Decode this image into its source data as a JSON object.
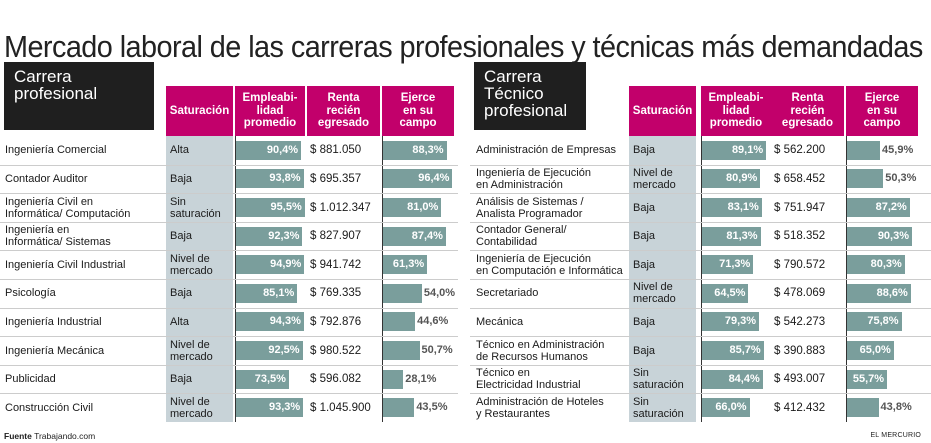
{
  "title": "Mercado laboral de las carreras profesionales y técnicas más demandadas",
  "source_label": "Fuente",
  "source_text": "Trabajando.com",
  "brand": "EL MERCURIO",
  "colors": {
    "header": "#c2006b",
    "bar": "#7a9e9c",
    "saturation_bg": "#c8d3d8",
    "category_bg": "#1f1f1f"
  },
  "chart_data": [
    {
      "type": "table",
      "category": "Carrera\nprofesional",
      "columns": [
        "Saturación",
        "Empleabi-\nlidad\npromedio",
        "Renta\nrecién\negresado",
        "Ejerce\nen su\ncampo"
      ],
      "rows": [
        {
          "career": "Ingeniería Comercial",
          "saturation": "Alta",
          "employability": 90.4,
          "employability_label": "90,4%",
          "salary": "$ 881.050",
          "field": 88.3,
          "field_label": "88,3%"
        },
        {
          "career": "Contador Auditor",
          "saturation": "Baja",
          "employability": 93.8,
          "employability_label": "93,8%",
          "salary": "$ 695.357",
          "field": 96.4,
          "field_label": "96,4%"
        },
        {
          "career": "Ingeniería Civil en\nInformática/ Computación",
          "saturation": "Sin\nsaturación",
          "employability": 95.5,
          "employability_label": "95,5%",
          "salary": "$ 1.012.347",
          "field": 81.0,
          "field_label": "81,0%"
        },
        {
          "career": "Ingeniería en\nInformática/ Sistemas",
          "saturation": "Baja",
          "employability": 92.3,
          "employability_label": "92,3%",
          "salary": "$ 827.907",
          "field": 87.4,
          "field_label": "87,4%"
        },
        {
          "career": "Ingeniería Civil Industrial",
          "saturation": "Nivel de\nmercado",
          "employability": 94.9,
          "employability_label": "94,9%",
          "salary": "$ 941.742",
          "field": 61.3,
          "field_label": "61,3%"
        },
        {
          "career": "Psicología",
          "saturation": "Baja",
          "employability": 85.1,
          "employability_label": "85,1%",
          "salary": "$ 769.335",
          "field": 54.0,
          "field_label": "54,0%"
        },
        {
          "career": "Ingeniería Industrial",
          "saturation": "Alta",
          "employability": 94.3,
          "employability_label": "94,3%",
          "salary": "$ 792.876",
          "field": 44.6,
          "field_label": "44,6%"
        },
        {
          "career": "Ingeniería Mecánica",
          "saturation": "Nivel de\nmercado",
          "employability": 92.5,
          "employability_label": "92,5%",
          "salary": "$ 980.522",
          "field": 50.7,
          "field_label": "50,7%"
        },
        {
          "career": "Publicidad",
          "saturation": "Baja",
          "employability": 73.5,
          "employability_label": "73,5%",
          "salary": "$ 596.082",
          "field": 28.1,
          "field_label": "28,1%"
        },
        {
          "career": "Construcción Civil",
          "saturation": "Nivel de\nmercado",
          "employability": 93.3,
          "employability_label": "93,3%",
          "salary": "$ 1.045.900",
          "field": 43.5,
          "field_label": "43,5%"
        }
      ]
    },
    {
      "type": "table",
      "category": "Carrera\nTécnico\nprofesional",
      "columns": [
        "Saturación",
        "Empleabi-\nlidad\npromedio",
        "Renta\nrecién\negresado",
        "Ejerce\nen su\ncampo"
      ],
      "rows": [
        {
          "career": "Administración de Empresas",
          "saturation": "Baja",
          "employability": 89.1,
          "employability_label": "89,1%",
          "salary": "$ 562.200",
          "field": 45.9,
          "field_label": "45,9%"
        },
        {
          "career": "Ingeniería de Ejecución\nen Administración",
          "saturation": "Nivel de\nmercado",
          "employability": 80.9,
          "employability_label": "80,9%",
          "salary": "$ 658.452",
          "field": 50.3,
          "field_label": "50,3%"
        },
        {
          "career": "Análisis de Sistemas /\nAnalista Programador",
          "saturation": "Baja",
          "employability": 83.1,
          "employability_label": "83,1%",
          "salary": "$ 751.947",
          "field": 87.2,
          "field_label": "87,2%"
        },
        {
          "career": "Contador General/\nContabilidad",
          "saturation": "Baja",
          "employability": 81.3,
          "employability_label": "81,3%",
          "salary": "$ 518.352",
          "field": 90.3,
          "field_label": "90,3%"
        },
        {
          "career": "Ingeniería de Ejecución\nen Computación e Informática",
          "saturation": "Baja",
          "employability": 71.3,
          "employability_label": "71,3%",
          "salary": "$ 790.572",
          "field": 80.3,
          "field_label": "80,3%"
        },
        {
          "career": "Secretariado",
          "saturation": "Nivel de\nmercado",
          "employability": 64.5,
          "employability_label": "64,5%",
          "salary": "$ 478.069",
          "field": 88.6,
          "field_label": "88,6%"
        },
        {
          "career": "Mecánica",
          "saturation": "Baja",
          "employability": 79.3,
          "employability_label": "79,3%",
          "salary": "$ 542.273",
          "field": 75.8,
          "field_label": "75,8%"
        },
        {
          "career": "Técnico en Administración\nde Recursos Humanos",
          "saturation": "Baja",
          "employability": 85.7,
          "employability_label": "85,7%",
          "salary": "$ 390.883",
          "field": 65.0,
          "field_label": "65,0%"
        },
        {
          "career": "Técnico en\nElectricidad Industrial",
          "saturation": "Sin\nsaturación",
          "employability": 84.4,
          "employability_label": "84,4%",
          "salary": "$ 493.007",
          "field": 55.7,
          "field_label": "55,7%"
        },
        {
          "career": "Administración de Hoteles\ny Restaurantes",
          "saturation": "Sin\nsaturación",
          "employability": 66.0,
          "employability_label": "66,0%",
          "salary": "$ 412.432",
          "field": 43.8,
          "field_label": "43,8%"
        }
      ]
    }
  ]
}
